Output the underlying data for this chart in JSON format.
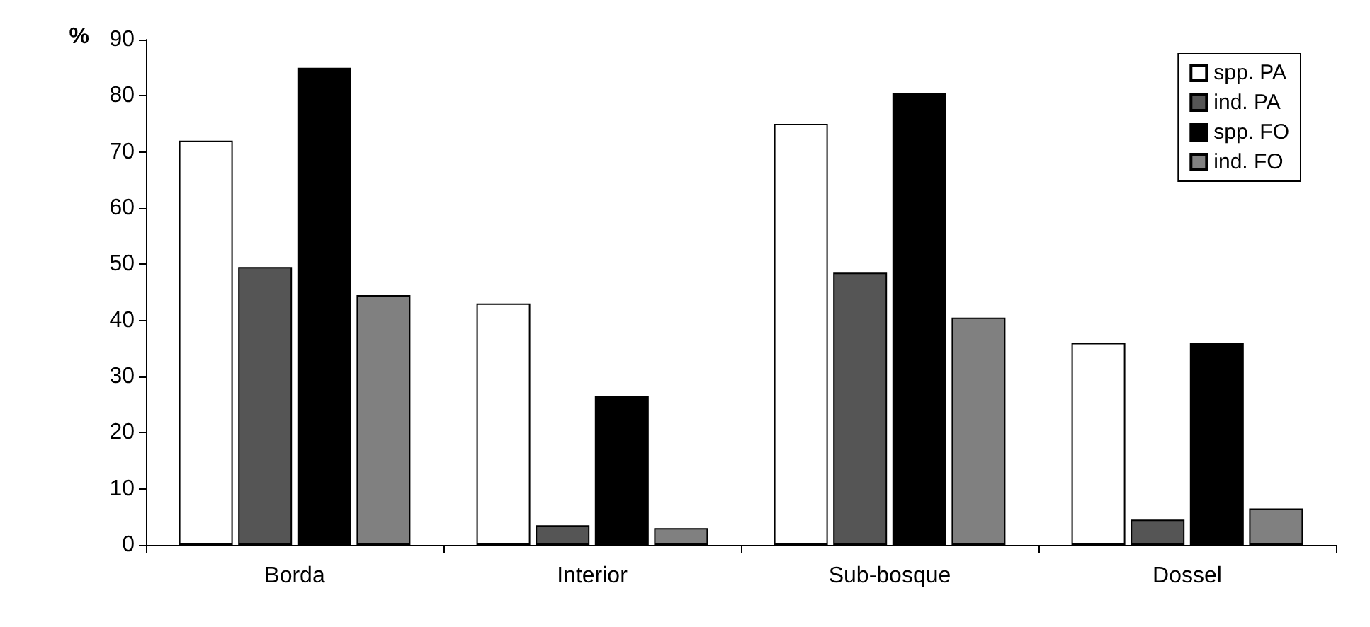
{
  "chart_data": {
    "type": "bar",
    "ylabel": "%",
    "categories": [
      "Borda",
      "Interior",
      "Sub-bosque",
      "Dossel"
    ],
    "series": [
      {
        "name": "spp. PA",
        "color": "#ffffff",
        "values": [
          72,
          43,
          75,
          36
        ]
      },
      {
        "name": "ind. PA",
        "color": "#555555",
        "values": [
          49.5,
          3.5,
          48.5,
          4.5
        ]
      },
      {
        "name": "spp. FO",
        "color": "#000000",
        "values": [
          85,
          26.5,
          80.5,
          36
        ]
      },
      {
        "name": "ind. FO",
        "color": "#808080",
        "values": [
          44.5,
          3,
          40.5,
          6.5
        ]
      }
    ],
    "ylim": [
      0,
      90
    ],
    "yticks": [
      0,
      10,
      20,
      30,
      40,
      50,
      60,
      70,
      80,
      90
    ],
    "grid": false,
    "legend": "top right"
  }
}
